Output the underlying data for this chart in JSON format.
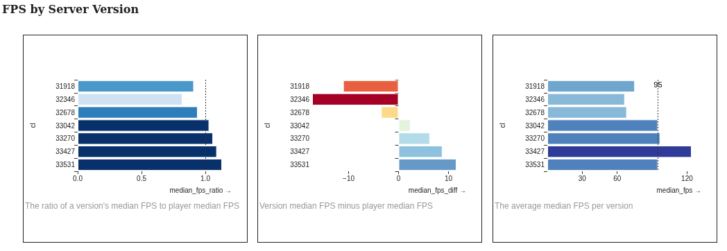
{
  "chart_data": [
    {
      "type": "bar",
      "title": "FPS by Server Version",
      "orientation": "horizontal",
      "ylabel": "cl",
      "xlabel": "median_fps_ratio →",
      "annotations": [
        "The ratio of a version's median FPS to player median FPS"
      ],
      "categories": [
        "31918",
        "32346",
        "32678",
        "33042",
        "33270",
        "33427",
        "33531"
      ],
      "values": [
        0.91,
        0.82,
        0.94,
        1.03,
        1.06,
        1.09,
        1.13
      ],
      "colors": [
        "#4a98c9",
        "#cfe1f2",
        "#2e7ebc",
        "#08306b",
        "#08306b",
        "#08306b",
        "#08306b"
      ],
      "xlim": [
        0,
        1.13
      ],
      "xticks": [
        {
          "value": 0,
          "label": "0.0"
        },
        0.5,
        {
          "value": 1,
          "label": "1.0"
        }
      ],
      "ref_lines": [
        {
          "axis": "x",
          "value": 1,
          "label": null,
          "color": "#333333",
          "line_style": "dotted"
        }
      ]
    },
    {
      "type": "bar",
      "orientation": "horizontal",
      "ylabel": "cl",
      "xlabel": "median_fps_diff →",
      "annotations": [
        "Version median FPS minus player median FPS"
      ],
      "categories": [
        "31918",
        "32346",
        "32678",
        "33042",
        "33270",
        "33427",
        "33531"
      ],
      "values": [
        -11.1,
        -17.3,
        -3.5,
        2.4,
        6.3,
        8.8,
        11.6
      ],
      "colors": [
        "#e8603f",
        "#a50026",
        "#fdd98a",
        "#e3f3dc",
        "#b3dbea",
        "#8dc1dd",
        "#6599c7"
      ],
      "xlim": [
        -17.3,
        11.6
      ],
      "xticks": [
        {
          "value": -10,
          "label": "−10"
        },
        0,
        10
      ]
    },
    {
      "type": "bar",
      "orientation": "horizontal",
      "ylabel": "cl",
      "xlabel": "median_fps →",
      "annotations": [
        "The average median FPS per version"
      ],
      "categories": [
        "31918",
        "32346",
        "32678",
        "33042",
        "33270",
        "33427",
        "33531"
      ],
      "values": [
        75.2,
        66.6,
        68.3,
        95,
        96.9,
        123.9,
        95
      ],
      "colors": [
        "#6ea6cd",
        "#88b9d9",
        "#88b9d9",
        "#4f81bd",
        "#4f81bd",
        "#2f3a99",
        "#4f81bd"
      ],
      "xlim": [
        0,
        123.9
      ],
      "xticks": [
        30,
        60,
        120
      ],
      "ref_lines": [
        {
          "axis": "x",
          "value": 95,
          "label": "95",
          "color": "#333333",
          "line_style": "dotted"
        }
      ]
    }
  ]
}
